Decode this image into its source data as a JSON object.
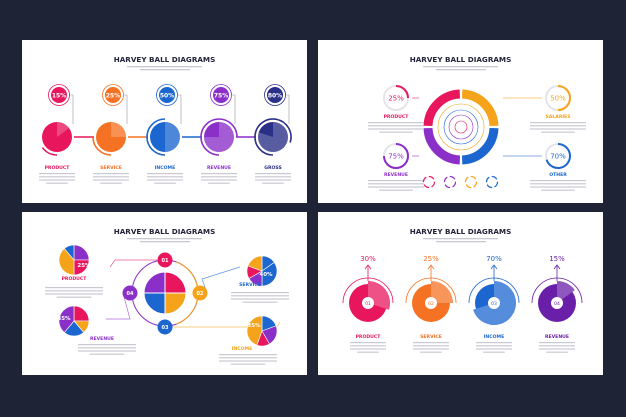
{
  "colors": {
    "pink": "#e8175d",
    "orange": "#f5a31a",
    "deep_orange": "#f57224",
    "blue": "#1c66d0",
    "purple": "#8b2fc9",
    "navy": "#2a2f87",
    "text_dark": "#22223a"
  },
  "panels": [
    {
      "title": "HARVEY BALL DIAGRAMS",
      "items": [
        {
          "label": "PRODUCT",
          "percent": "15%",
          "value": 15,
          "color": "#e8175d"
        },
        {
          "label": "SERVICE",
          "percent": "25%",
          "value": 25,
          "color": "#f57224"
        },
        {
          "label": "INCOME",
          "percent": "50%",
          "value": 50,
          "color": "#1c66d0"
        },
        {
          "label": "REVENUE",
          "percent": "75%",
          "value": 75,
          "color": "#8b2fc9"
        },
        {
          "label": "GROSS",
          "percent": "80%",
          "value": 80,
          "color": "#2a2f87"
        }
      ]
    },
    {
      "title": "HARVEY BALL DIAGRAMS",
      "items": [
        {
          "label": "PRODUCT",
          "percent": "25%",
          "value": 25,
          "color": "#e8175d"
        },
        {
          "label": "SALARIES",
          "percent": "50%",
          "value": 50,
          "color": "#f5a31a"
        },
        {
          "label": "REVENUE",
          "percent": "75%",
          "value": 75,
          "color": "#8b2fc9"
        },
        {
          "label": "OTHER",
          "percent": "70%",
          "value": 70,
          "color": "#1c66d0"
        }
      ]
    },
    {
      "title": "HARVEY BALL DIAGRAMS",
      "nodes": [
        "01",
        "02",
        "03",
        "04"
      ],
      "items": [
        {
          "label": "PRODUCT",
          "percent": "25%",
          "value": 25,
          "color": "#e8175d"
        },
        {
          "label": "SERVICE",
          "percent": "40%",
          "value": 40,
          "color": "#1c66d0"
        },
        {
          "label": "INCOME",
          "percent": "35%",
          "value": 35,
          "color": "#f5a31a"
        },
        {
          "label": "REVENUE",
          "percent": "35%",
          "value": 35,
          "color": "#8b2fc9"
        }
      ]
    },
    {
      "title": "HARVEY BALL DIAGRAMS",
      "items": [
        {
          "label": "PRODUCT",
          "number": "01",
          "percent": "30%",
          "value": 30,
          "color": "#e8175d"
        },
        {
          "label": "SERVICE",
          "number": "02",
          "percent": "25%",
          "value": 25,
          "color": "#f57224"
        },
        {
          "label": "INCOME",
          "number": "03",
          "percent": "70%",
          "value": 70,
          "color": "#1c66d0"
        },
        {
          "label": "REVENUE",
          "number": "04",
          "percent": "15%",
          "value": 15,
          "color": "#6a1fa8"
        }
      ]
    }
  ]
}
